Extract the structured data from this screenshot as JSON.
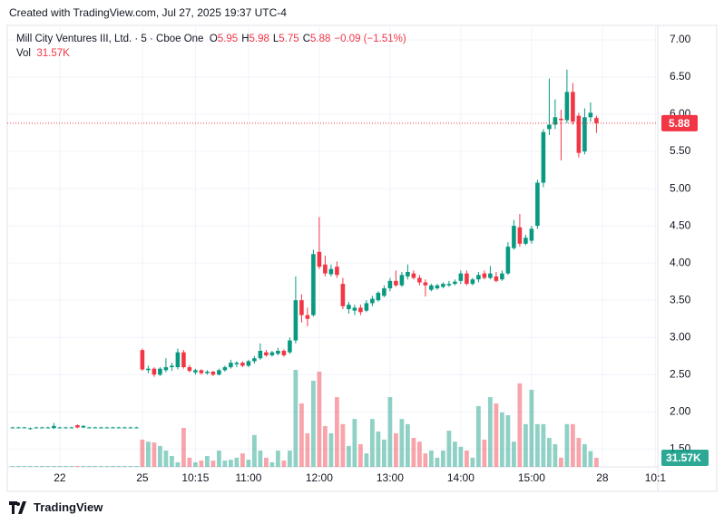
{
  "header": {
    "text": "Created with TradingView.com, Jul 27, 2025 19:37 UTC-4"
  },
  "chart_data": {
    "type": "candlestick",
    "symbol": "Mill City Ventures III, Ltd. · 5 · Cboe One",
    "legend": [
      {
        "key": "O",
        "value": "5.95"
      },
      {
        "key": "H",
        "value": "5.98"
      },
      {
        "key": "L",
        "value": "5.75"
      },
      {
        "key": "C",
        "value": "5.88"
      }
    ],
    "change": "−0.09 (−1.51%)",
    "volume_key": "Vol",
    "volume_value": "31.57K",
    "colors": {
      "up": "#089981",
      "down": "#f23645"
    },
    "grid": true,
    "xlim": [
      -0.6,
      109.4
    ],
    "xticks": [
      {
        "value": 8,
        "label": "22"
      },
      {
        "value": 22,
        "label": "25"
      },
      {
        "value": 31,
        "label": "10:15"
      },
      {
        "value": 40,
        "label": "11:00"
      },
      {
        "value": 52,
        "label": "12:00"
      },
      {
        "value": 64,
        "label": "13:00"
      },
      {
        "value": 76,
        "label": "14:00"
      },
      {
        "value": 88,
        "label": "15:00"
      },
      {
        "value": 100,
        "label": "28"
      },
      {
        "value": 109,
        "label": "10:1"
      }
    ],
    "ylim": [
      1.26,
      7.17
    ],
    "yticks": [
      {
        "value": 7,
        "label": "7.00"
      },
      {
        "value": 6.5,
        "label": "6.50"
      },
      {
        "value": 6,
        "label": "6.00"
      },
      {
        "value": 5.5,
        "label": "5.50"
      },
      {
        "value": 5,
        "label": "5.00"
      },
      {
        "value": 4.5,
        "label": "4.50"
      },
      {
        "value": 4,
        "label": "4.00"
      },
      {
        "value": 3.5,
        "label": "3.50"
      },
      {
        "value": 3,
        "label": "3.00"
      },
      {
        "value": 2.5,
        "label": "2.50"
      },
      {
        "value": 2,
        "label": "2.00"
      },
      {
        "value": 1.5,
        "label": "1.50"
      }
    ],
    "last_price": 5.88,
    "last_volume": {
      "value": 31.57,
      "label": "31.57K"
    },
    "ohlc": [
      [
        1.79,
        1.8,
        1.78,
        1.79
      ],
      [
        1.79,
        1.8,
        1.78,
        1.79
      ],
      [
        1.79,
        1.8,
        1.78,
        1.79
      ],
      [
        1.77,
        1.79,
        1.76,
        1.78
      ],
      [
        1.79,
        1.8,
        1.78,
        1.79
      ],
      [
        1.79,
        1.8,
        1.78,
        1.79
      ],
      [
        1.79,
        1.8,
        1.78,
        1.79
      ],
      [
        1.78,
        1.85,
        1.77,
        1.81
      ],
      [
        1.79,
        1.8,
        1.78,
        1.79
      ],
      [
        1.79,
        1.8,
        1.78,
        1.79
      ],
      [
        1.79,
        1.8,
        1.78,
        1.79
      ],
      [
        1.82,
        1.83,
        1.78,
        1.79
      ],
      [
        1.79,
        1.82,
        1.78,
        1.81
      ],
      [
        1.79,
        1.8,
        1.78,
        1.79
      ],
      [
        1.79,
        1.8,
        1.78,
        1.79
      ],
      [
        1.79,
        1.8,
        1.78,
        1.79
      ],
      [
        1.79,
        1.8,
        1.78,
        1.79
      ],
      [
        1.79,
        1.8,
        1.78,
        1.79
      ],
      [
        1.79,
        1.8,
        1.78,
        1.79
      ],
      [
        1.79,
        1.8,
        1.78,
        1.79
      ],
      [
        1.79,
        1.8,
        1.78,
        1.79
      ],
      [
        1.79,
        1.8,
        1.78,
        1.79
      ],
      [
        2.83,
        2.85,
        2.55,
        2.57
      ],
      [
        2.56,
        2.62,
        2.52,
        2.58
      ],
      [
        2.58,
        2.6,
        2.47,
        2.5
      ],
      [
        2.5,
        2.6,
        2.48,
        2.58
      ],
      [
        2.56,
        2.72,
        2.53,
        2.6
      ],
      [
        2.6,
        2.66,
        2.55,
        2.62
      ],
      [
        2.6,
        2.85,
        2.57,
        2.8
      ],
      [
        2.8,
        2.83,
        2.58,
        2.6
      ],
      [
        2.6,
        2.63,
        2.53,
        2.55
      ],
      [
        2.53,
        2.58,
        2.5,
        2.56
      ],
      [
        2.56,
        2.57,
        2.5,
        2.52
      ],
      [
        2.52,
        2.56,
        2.5,
        2.54
      ],
      [
        2.54,
        2.55,
        2.48,
        2.5
      ],
      [
        2.5,
        2.58,
        2.49,
        2.56
      ],
      [
        2.56,
        2.62,
        2.54,
        2.6
      ],
      [
        2.6,
        2.7,
        2.58,
        2.66
      ],
      [
        2.64,
        2.68,
        2.6,
        2.66
      ],
      [
        2.66,
        2.68,
        2.6,
        2.62
      ],
      [
        2.62,
        2.7,
        2.6,
        2.68
      ],
      [
        2.68,
        2.75,
        2.65,
        2.72
      ],
      [
        2.72,
        2.92,
        2.7,
        2.82
      ],
      [
        2.8,
        2.83,
        2.74,
        2.76
      ],
      [
        2.76,
        2.82,
        2.74,
        2.8
      ],
      [
        2.78,
        2.86,
        2.76,
        2.82
      ],
      [
        2.82,
        2.84,
        2.74,
        2.76
      ],
      [
        2.8,
        3.0,
        2.78,
        2.96
      ],
      [
        2.96,
        3.82,
        2.92,
        3.5
      ],
      [
        3.5,
        3.58,
        3.2,
        3.3
      ],
      [
        3.3,
        3.4,
        3.15,
        3.25
      ],
      [
        3.3,
        4.18,
        3.28,
        4.12
      ],
      [
        4.15,
        4.62,
        3.92,
        3.95
      ],
      [
        3.98,
        4.1,
        3.82,
        3.86
      ],
      [
        3.85,
        3.98,
        3.82,
        3.92
      ],
      [
        3.95,
        4.02,
        3.8,
        3.84
      ],
      [
        3.72,
        3.8,
        3.38,
        3.42
      ],
      [
        3.38,
        3.48,
        3.32,
        3.44
      ],
      [
        3.36,
        3.44,
        3.3,
        3.4
      ],
      [
        3.4,
        3.44,
        3.3,
        3.34
      ],
      [
        3.36,
        3.5,
        3.34,
        3.46
      ],
      [
        3.46,
        3.56,
        3.42,
        3.52
      ],
      [
        3.5,
        3.62,
        3.48,
        3.6
      ],
      [
        3.56,
        3.7,
        3.54,
        3.66
      ],
      [
        3.66,
        3.8,
        3.62,
        3.76
      ],
      [
        3.76,
        3.9,
        3.68,
        3.7
      ],
      [
        3.7,
        3.88,
        3.68,
        3.84
      ],
      [
        3.82,
        3.98,
        3.78,
        3.88
      ],
      [
        3.86,
        3.9,
        3.78,
        3.8
      ],
      [
        3.8,
        3.84,
        3.7,
        3.74
      ],
      [
        3.74,
        3.78,
        3.55,
        3.7
      ],
      [
        3.64,
        3.72,
        3.62,
        3.7
      ],
      [
        3.66,
        3.72,
        3.64,
        3.7
      ],
      [
        3.68,
        3.74,
        3.66,
        3.72
      ],
      [
        3.7,
        3.76,
        3.68,
        3.72
      ],
      [
        3.72,
        3.78,
        3.7,
        3.75
      ],
      [
        3.76,
        3.9,
        3.72,
        3.86
      ],
      [
        3.86,
        3.9,
        3.7,
        3.72
      ],
      [
        3.72,
        3.8,
        3.7,
        3.78
      ],
      [
        3.78,
        3.88,
        3.74,
        3.84
      ],
      [
        3.86,
        3.9,
        3.78,
        3.8
      ],
      [
        3.8,
        3.96,
        3.78,
        3.86
      ],
      [
        3.82,
        3.88,
        3.74,
        3.76
      ],
      [
        3.78,
        3.9,
        3.76,
        3.86
      ],
      [
        3.86,
        4.28,
        3.84,
        4.22
      ],
      [
        4.2,
        4.58,
        4.18,
        4.5
      ],
      [
        4.48,
        4.66,
        4.22,
        4.26
      ],
      [
        4.26,
        4.38,
        4.24,
        4.34
      ],
      [
        4.3,
        4.5,
        4.26,
        4.46
      ],
      [
        4.5,
        5.12,
        4.46,
        5.08
      ],
      [
        5.08,
        5.8,
        5.02,
        5.76
      ],
      [
        5.8,
        6.48,
        5.72,
        5.86
      ],
      [
        5.86,
        6.2,
        5.8,
        5.96
      ],
      [
        5.94,
        6.06,
        5.38,
        5.92
      ],
      [
        5.92,
        6.6,
        5.88,
        6.3
      ],
      [
        6.3,
        6.42,
        5.86,
        5.9
      ],
      [
        5.98,
        6.02,
        5.42,
        5.48
      ],
      [
        5.5,
        6.08,
        5.46,
        5.96
      ],
      [
        5.96,
        6.16,
        5.9,
        6.02
      ],
      [
        5.95,
        5.98,
        5.75,
        5.88
      ]
    ],
    "volume": [
      3,
      3,
      3,
      3,
      3,
      3,
      3,
      3,
      3,
      3,
      3,
      3,
      3,
      3,
      3,
      3,
      3,
      3,
      3,
      3,
      3,
      3,
      95,
      88,
      85,
      73,
      57,
      38,
      16,
      136,
      32,
      16,
      22,
      38,
      22,
      57,
      22,
      25,
      32,
      47,
      25,
      111,
      57,
      32,
      16,
      57,
      22,
      57,
      338,
      221,
      117,
      300,
      332,
      142,
      117,
      243,
      149,
      73,
      167,
      79,
      47,
      167,
      123,
      95,
      243,
      117,
      167,
      149,
      101,
      88,
      47,
      57,
      32,
      57,
      126,
      88,
      70,
      57,
      32,
      212,
      95,
      243,
      221,
      190,
      180,
      88,
      291,
      149,
      269,
      149,
      149,
      101,
      79,
      32,
      149,
      149,
      101,
      79,
      55,
      31.57
    ]
  },
  "footer": {
    "brand": "TradingView"
  }
}
